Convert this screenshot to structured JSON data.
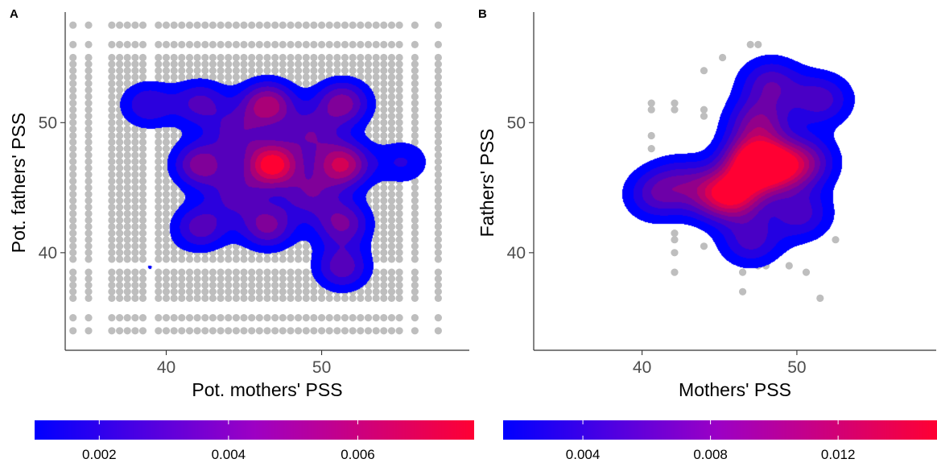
{
  "colors": {
    "low": "#0000ff",
    "high": "#ff0033",
    "points": "#bebebe",
    "axis": "#333333",
    "tick_text": "#4d4d4d"
  },
  "chart_data": [
    {
      "panel": "A",
      "type": "scatter",
      "title": "",
      "xlabel": "Pot. mothers' PSS",
      "ylabel": "Pot. fathers' PSS",
      "xlim": [
        33.5,
        59.5
      ],
      "ylim": [
        32.5,
        58.5
      ],
      "xticks": [
        40,
        50
      ],
      "yticks": [
        40,
        50
      ],
      "grid": false,
      "points": {
        "grid": true,
        "x_values": [
          34,
          35,
          36.5,
          37,
          37.5,
          38,
          38.5,
          39.5,
          40,
          40.5,
          41,
          41.5,
          42,
          42.5,
          43,
          43.5,
          44,
          44.5,
          45,
          45.5,
          46,
          46.5,
          47,
          47.5,
          48,
          48.5,
          49,
          49.5,
          50,
          50.5,
          51,
          51.5,
          52,
          52.5,
          53,
          53.5,
          54,
          54.5,
          55,
          56,
          57.5
        ],
        "y_values": [
          34,
          35,
          36.5,
          37,
          37.5,
          38,
          38.5,
          39.5,
          40,
          40.5,
          41,
          41.5,
          42,
          42.5,
          43,
          43.5,
          44,
          44.5,
          45,
          45.5,
          46,
          46.5,
          47,
          47.5,
          48,
          48.5,
          49,
          49.5,
          50,
          50.5,
          51,
          51.5,
          52,
          52.5,
          53,
          53.5,
          54,
          54.5,
          55,
          56,
          57.5
        ]
      },
      "density_peaks": [
        {
          "x": 46.8,
          "y": 46.8,
          "density": 0.0075
        },
        {
          "x": 51.3,
          "y": 46.8,
          "density": 0.006
        },
        {
          "x": 46.5,
          "y": 51.4,
          "density": 0.0055
        },
        {
          "x": 42.2,
          "y": 46.8,
          "density": 0.0045
        },
        {
          "x": 51.3,
          "y": 51.5,
          "density": 0.0045
        },
        {
          "x": 46.5,
          "y": 42.1,
          "density": 0.0042
        },
        {
          "x": 51.3,
          "y": 42.3,
          "density": 0.004
        },
        {
          "x": 42.2,
          "y": 42.0,
          "density": 0.0035
        },
        {
          "x": 42.2,
          "y": 51.5,
          "density": 0.0032
        },
        {
          "x": 38.8,
          "y": 51.4,
          "density": 0.0028
        },
        {
          "x": 51.3,
          "y": 38.9,
          "density": 0.0035
        },
        {
          "x": 55.2,
          "y": 47.0,
          "density": 0.002
        },
        {
          "x": 44.5,
          "y": 44.5,
          "density": 0.003
        },
        {
          "x": 49.2,
          "y": 44.5,
          "density": 0.0032
        },
        {
          "x": 44.5,
          "y": 49.2,
          "density": 0.003
        },
        {
          "x": 49.2,
          "y": 49.2,
          "density": 0.0032
        },
        {
          "x": 38.9,
          "y": 38.9,
          "density": 0.001
        }
      ],
      "colorbar": {
        "min": 0.001,
        "max": 0.0078,
        "breaks": [
          0.002,
          0.004,
          0.006
        ],
        "labels": [
          "0.002",
          "0.004",
          "0.006"
        ],
        "legend_position": "bottom"
      }
    },
    {
      "panel": "B",
      "type": "scatter",
      "title": "",
      "xlabel": "Mothers' PSS",
      "ylabel": "Fathers' PSS",
      "xlim": [
        33,
        59
      ],
      "ylim": [
        32.5,
        58.5
      ],
      "xticks": [
        40,
        50
      ],
      "yticks": [
        40,
        50
      ],
      "grid": false,
      "points": [
        [
          40.6,
          51.5
        ],
        [
          40.6,
          51.0
        ],
        [
          40.6,
          49.0
        ],
        [
          40.6,
          48.0
        ],
        [
          40.6,
          46.0
        ],
        [
          40.9,
          46.5
        ],
        [
          41.2,
          47.0
        ],
        [
          42.1,
          51.5
        ],
        [
          42.1,
          51.0
        ],
        [
          42.1,
          41.5
        ],
        [
          42.1,
          41.0
        ],
        [
          42.1,
          40.0
        ],
        [
          42.1,
          38.5
        ],
        [
          44.0,
          54.0
        ],
        [
          44.0,
          51.0
        ],
        [
          44.0,
          50.5
        ],
        [
          44.0,
          40.5
        ],
        [
          45.2,
          55.0
        ],
        [
          44.6,
          45.0
        ],
        [
          46.5,
          38.5
        ],
        [
          46.5,
          37.0
        ],
        [
          47.5,
          39.0
        ],
        [
          48.0,
          39.0
        ],
        [
          49.5,
          39.0
        ],
        [
          50.6,
          38.5
        ],
        [
          51.5,
          36.5
        ],
        [
          52.5,
          41.0
        ],
        [
          47.0,
          56.0
        ],
        [
          47.5,
          56.0
        ],
        [
          45.5,
          44.5
        ],
        [
          46.0,
          45.0
        ],
        [
          47.0,
          47.0
        ],
        [
          48.0,
          48.0
        ],
        [
          49.0,
          47.0
        ],
        [
          50.0,
          46.5
        ],
        [
          51.5,
          51.5
        ],
        [
          51.0,
          52.0
        ],
        [
          48.5,
          54.0
        ],
        [
          47.5,
          52.0
        ],
        [
          46.5,
          50.0
        ],
        [
          45.5,
          48.0
        ],
        [
          48.5,
          44.0
        ],
        [
          49.0,
          42.0
        ]
      ],
      "density_peaks": [
        {
          "x": 47.2,
          "y": 47.0,
          "density": 0.0145
        },
        {
          "x": 46.0,
          "y": 44.5,
          "density": 0.011
        },
        {
          "x": 48.7,
          "y": 46.5,
          "density": 0.009
        },
        {
          "x": 47.5,
          "y": 50.0,
          "density": 0.0075
        },
        {
          "x": 48.3,
          "y": 53.0,
          "density": 0.006
        },
        {
          "x": 51.5,
          "y": 51.8,
          "density": 0.0058
        },
        {
          "x": 50.5,
          "y": 47.0,
          "density": 0.007
        },
        {
          "x": 50.2,
          "y": 43.0,
          "density": 0.0055
        },
        {
          "x": 47.0,
          "y": 41.0,
          "density": 0.0055
        },
        {
          "x": 44.5,
          "y": 44.5,
          "density": 0.006
        },
        {
          "x": 40.9,
          "y": 44.5,
          "density": 0.0055
        },
        {
          "x": 42.5,
          "y": 45.5,
          "density": 0.004
        }
      ],
      "colorbar": {
        "min": 0.0015,
        "max": 0.0151,
        "breaks": [
          0.004,
          0.008,
          0.012
        ],
        "labels": [
          "0.004",
          "0.008",
          "0.012"
        ],
        "legend_position": "bottom"
      }
    }
  ]
}
